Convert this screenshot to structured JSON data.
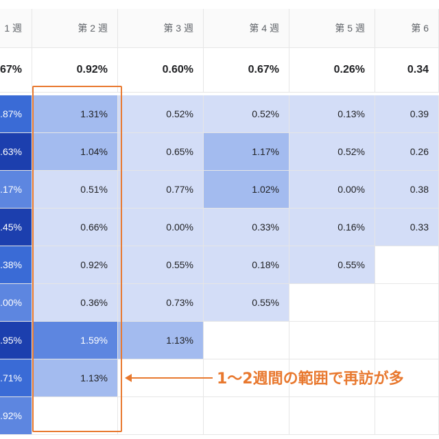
{
  "columns": [
    "1 週",
    "第 2 週",
    "第 3 週",
    "第 4 週",
    "第 5 週",
    "第 6"
  ],
  "averages": [
    ".67%",
    "0.92%",
    "0.60%",
    "0.67%",
    "0.26%",
    "0.34"
  ],
  "rows": [
    [
      ".87%",
      "1.31%",
      "0.52%",
      "0.52%",
      "0.13%",
      "0.39"
    ],
    [
      ".63%",
      "1.04%",
      "0.65%",
      "1.17%",
      "0.52%",
      "0.26"
    ],
    [
      ".17%",
      "0.51%",
      "0.77%",
      "1.02%",
      "0.00%",
      "0.38"
    ],
    [
      ".45%",
      "0.66%",
      "0.00%",
      "0.33%",
      "0.16%",
      "0.33"
    ],
    [
      ".38%",
      "0.92%",
      "0.55%",
      "0.18%",
      "0.55%",
      ""
    ],
    [
      ".00%",
      "0.36%",
      "0.73%",
      "0.55%",
      "",
      ""
    ],
    [
      ".95%",
      "1.59%",
      "1.13%",
      "",
      "",
      ""
    ],
    [
      ".71%",
      "1.13%",
      "",
      "",
      "",
      ""
    ],
    [
      ".92%",
      "",
      "",
      "",
      "",
      ""
    ]
  ],
  "shades": [
    [
      "strong",
      "mid",
      "light",
      "light",
      "light",
      "light"
    ],
    [
      "dark",
      "mid",
      "light",
      "mid",
      "light",
      "light"
    ],
    [
      "med",
      "light",
      "light",
      "mid",
      "light",
      "light"
    ],
    [
      "dark",
      "light",
      "light",
      "light",
      "light",
      "light"
    ],
    [
      "strong",
      "light",
      "light",
      "light",
      "light",
      "none"
    ],
    [
      "med",
      "light",
      "light",
      "light",
      "none",
      "none"
    ],
    [
      "dark",
      "med",
      "mid",
      "none",
      "none",
      "none"
    ],
    [
      "strong",
      "mid",
      "none",
      "none",
      "none",
      "none"
    ],
    [
      "med",
      "none",
      "none",
      "none",
      "none",
      "none"
    ]
  ],
  "annotation": {
    "text": "1〜2週間の範囲で再訪が多",
    "color": "#e8782e"
  },
  "colors": {
    "light": "#d3ddf7",
    "mid": "#a3bbef",
    "med": "#5d86e0",
    "strong": "#3a6bd6",
    "dark": "#1c3fae",
    "accent": "#e8782e"
  }
}
